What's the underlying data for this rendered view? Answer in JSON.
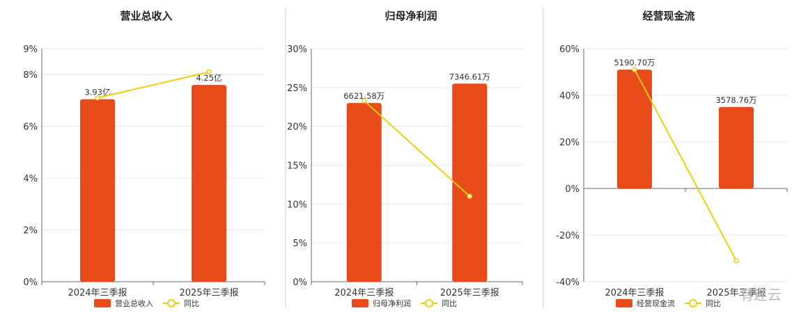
{
  "colors": {
    "bar": "#E84B1A",
    "line": "#F2CC0C"
  },
  "watermark": "有连云",
  "chart_data": [
    {
      "type": "bar",
      "title": "营业总收入",
      "categories": [
        "2024年三季报",
        "2025年三季报"
      ],
      "yticks": [
        0,
        2,
        4,
        6,
        8,
        9
      ],
      "ytick_labels": [
        "0%",
        "2%",
        "4%",
        "6%",
        "8%",
        "9%"
      ],
      "ylim": [
        0,
        9
      ],
      "series": [
        {
          "name": "营业总收入",
          "type": "bar",
          "values": [
            7.05,
            7.6
          ],
          "labels": [
            "3.93亿",
            "4.25亿"
          ]
        },
        {
          "name": "同比",
          "type": "line",
          "values": [
            7.1,
            8.1
          ]
        }
      ],
      "legend": "bottom"
    },
    {
      "type": "bar",
      "title": "归母净利润",
      "categories": [
        "2024年三季报",
        "2025年三季报"
      ],
      "yticks": [
        0,
        5,
        10,
        15,
        20,
        25,
        30
      ],
      "ytick_labels": [
        "0%",
        "5%",
        "10%",
        "15%",
        "20%",
        "25%",
        "30%"
      ],
      "ylim": [
        0,
        30
      ],
      "series": [
        {
          "name": "归母净利润",
          "type": "bar",
          "values": [
            23.0,
            25.5
          ],
          "labels": [
            "6621.58万",
            "7346.61万"
          ]
        },
        {
          "name": "同比",
          "type": "line",
          "values": [
            23.3,
            11.0
          ]
        }
      ],
      "legend": "bottom"
    },
    {
      "type": "bar",
      "title": "经营现金流",
      "categories": [
        "2024年三季报",
        "2025年三季报"
      ],
      "yticks": [
        -40,
        -20,
        0,
        20,
        40,
        60
      ],
      "ytick_labels": [
        "-40%",
        "-20%",
        "0%",
        "20%",
        "40%",
        "60%"
      ],
      "ylim": [
        -40,
        60
      ],
      "series": [
        {
          "name": "经营现金流",
          "type": "bar",
          "values": [
            51.0,
            35.0
          ],
          "labels": [
            "5190.70万",
            "3578.76万"
          ]
        },
        {
          "name": "同比",
          "type": "line",
          "values": [
            51.0,
            -31.0
          ]
        }
      ],
      "legend": "bottom"
    }
  ]
}
